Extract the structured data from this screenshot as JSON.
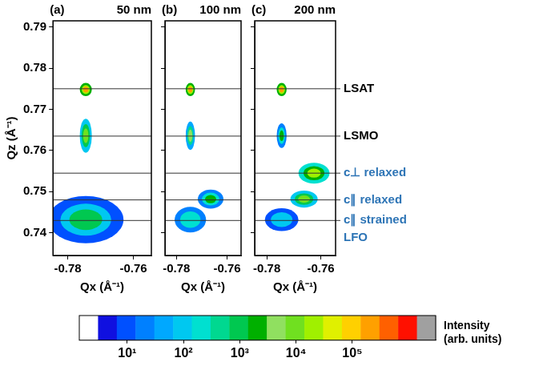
{
  "chart_data": [
    {
      "type": "scatter",
      "panel": "(a)",
      "title": "50 nm",
      "xlabel": "Qx (Å⁻¹)",
      "ylabel": "Qz (Å⁻¹)",
      "xlim": [
        -0.7845,
        -0.7545
      ],
      "xticks": [
        -0.78,
        -0.76
      ],
      "ylim": [
        0.7345,
        0.7915
      ],
      "yticks": [
        0.74,
        0.75,
        0.76,
        0.77,
        0.78,
        0.79
      ],
      "grid": false,
      "peaks": {
        "qx": [
          -0.7745,
          -0.7745,
          -0.7745
        ],
        "qz": [
          0.7748,
          0.7636,
          0.7432
        ],
        "intensity": [
          200000,
          8000,
          800
        ],
        "qx_width": [
          0.0008,
          0.0008,
          0.005
        ],
        "qz_width": [
          0.0007,
          0.0018,
          0.0025
        ]
      }
    },
    {
      "type": "scatter",
      "panel": "(b)",
      "title": "100 nm",
      "xlabel": "Qx (Å⁻¹)",
      "xlim": [
        -0.7845,
        -0.7545
      ],
      "xticks": [
        -0.78,
        -0.76
      ],
      "ylim": [
        0.7345,
        0.7915
      ],
      "yticks": [
        0.74,
        0.75,
        0.76,
        0.77,
        0.78,
        0.79
      ],
      "grid": false,
      "tick_labels": "x",
      "peaks": {
        "qx": [
          -0.7745,
          -0.7745,
          -0.7665,
          -0.7745
        ],
        "qz": [
          0.7748,
          0.7636,
          0.7482,
          0.7432
        ],
        "intensity": [
          200000,
          5000,
          3000,
          300
        ],
        "qx_width": [
          0.0008,
          0.0008,
          0.0022,
          0.004
        ],
        "qz_width": [
          0.0007,
          0.0015,
          0.001,
          0.002
        ]
      }
    },
    {
      "type": "scatter",
      "panel": "(c)",
      "title": "200 nm",
      "xlabel": "Qx (Å⁻¹)",
      "xlim": [
        -0.7845,
        -0.7545
      ],
      "xticks": [
        -0.78,
        -0.76
      ],
      "ylim": [
        0.7345,
        0.7915
      ],
      "yticks": [
        0.74,
        0.75,
        0.76,
        0.77,
        0.78,
        0.79
      ],
      "grid": false,
      "tick_labels": "x",
      "peaks": {
        "qx": [
          -0.7745,
          -0.7745,
          -0.7625,
          -0.7662,
          -0.7745
        ],
        "qz": [
          0.7748,
          0.7636,
          0.7545,
          0.7482,
          0.7432
        ],
        "intensity": [
          200000,
          2000,
          15000,
          10000,
          100
        ],
        "qx_width": [
          0.0008,
          0.0008,
          0.0025,
          0.0022,
          0.004
        ],
        "qz_width": [
          0.0007,
          0.0013,
          0.0011,
          0.0009,
          0.0018
        ]
      }
    }
  ],
  "reference_lines": {
    "labels": [
      "LSAT",
      "LSMO",
      "c⊥ relaxed",
      "c∥ relaxed",
      "c∥ strained"
    ],
    "values": [
      0.775,
      0.7635,
      0.7545,
      0.748,
      0.743
    ],
    "colors": [
      "#000000",
      "#000000",
      "#2e75b6",
      "#2e75b6",
      "#2e75b6"
    ],
    "group": {
      "label": "LFO",
      "color": "#2e75b6"
    }
  },
  "colorbar": {
    "title": "Intensity (arb. units)",
    "log": true,
    "clim": [
      1.41,
      3020000
    ],
    "ticks": [
      {
        "value": 10,
        "label": "10¹"
      },
      {
        "value": 100,
        "label": "10²"
      },
      {
        "value": 1000,
        "label": "10³"
      },
      {
        "value": 10000,
        "label": "10⁴"
      },
      {
        "value": 100000,
        "label": "10⁵"
      }
    ],
    "colors": [
      "#ffffff",
      "#1010e0",
      "#0050ff",
      "#0080ff",
      "#00a8ff",
      "#00c8f0",
      "#00e0d0",
      "#00d890",
      "#00c850",
      "#00b000",
      "#90e060",
      "#70e020",
      "#a0f000",
      "#e0f000",
      "#ffd000",
      "#ffa000",
      "#ff6000",
      "#ff1000",
      "#a0a0a0"
    ]
  }
}
